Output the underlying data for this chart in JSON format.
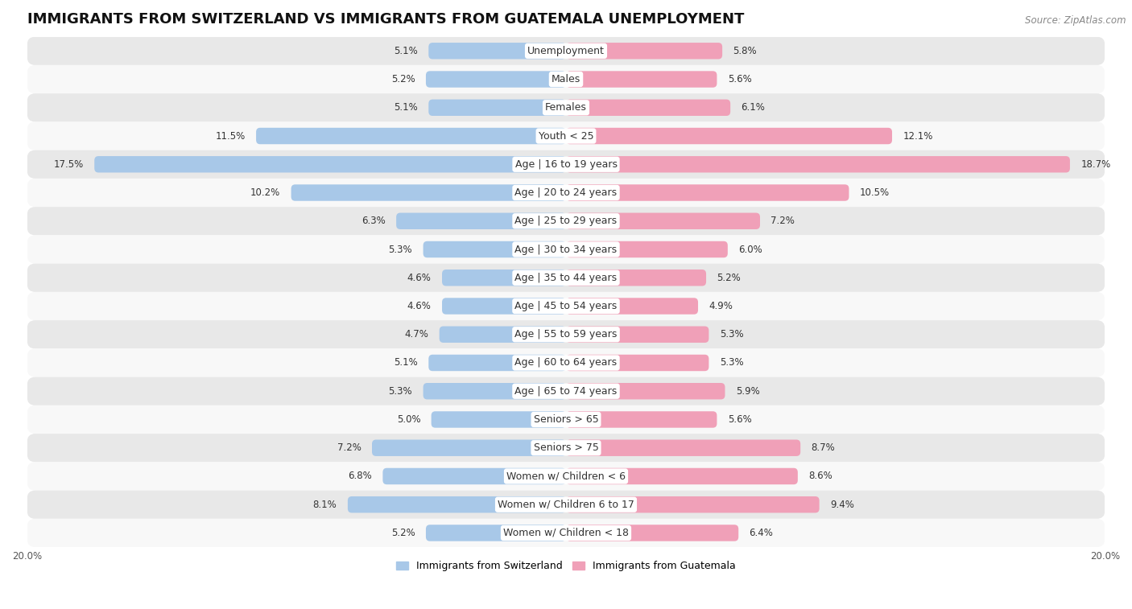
{
  "title": "IMMIGRANTS FROM SWITZERLAND VS IMMIGRANTS FROM GUATEMALA UNEMPLOYMENT",
  "source": "Source: ZipAtlas.com",
  "categories": [
    "Unemployment",
    "Males",
    "Females",
    "Youth < 25",
    "Age | 16 to 19 years",
    "Age | 20 to 24 years",
    "Age | 25 to 29 years",
    "Age | 30 to 34 years",
    "Age | 35 to 44 years",
    "Age | 45 to 54 years",
    "Age | 55 to 59 years",
    "Age | 60 to 64 years",
    "Age | 65 to 74 years",
    "Seniors > 65",
    "Seniors > 75",
    "Women w/ Children < 6",
    "Women w/ Children 6 to 17",
    "Women w/ Children < 18"
  ],
  "switzerland_values": [
    5.1,
    5.2,
    5.1,
    11.5,
    17.5,
    10.2,
    6.3,
    5.3,
    4.6,
    4.6,
    4.7,
    5.1,
    5.3,
    5.0,
    7.2,
    6.8,
    8.1,
    5.2
  ],
  "guatemala_values": [
    5.8,
    5.6,
    6.1,
    12.1,
    18.7,
    10.5,
    7.2,
    6.0,
    5.2,
    4.9,
    5.3,
    5.3,
    5.9,
    5.6,
    8.7,
    8.6,
    9.4,
    6.4
  ],
  "switzerland_color": "#a8c8e8",
  "guatemala_color": "#f0a0b8",
  "switzerland_label": "Immigrants from Switzerland",
  "guatemala_label": "Immigrants from Guatemala",
  "axis_limit": 20.0,
  "bg_color_odd": "#e8e8e8",
  "bg_color_even": "#f8f8f8",
  "title_fontsize": 13,
  "cat_fontsize": 9,
  "value_fontsize": 8.5,
  "bar_height": 0.58,
  "axis_label_fontsize": 8.5,
  "legend_fontsize": 9
}
